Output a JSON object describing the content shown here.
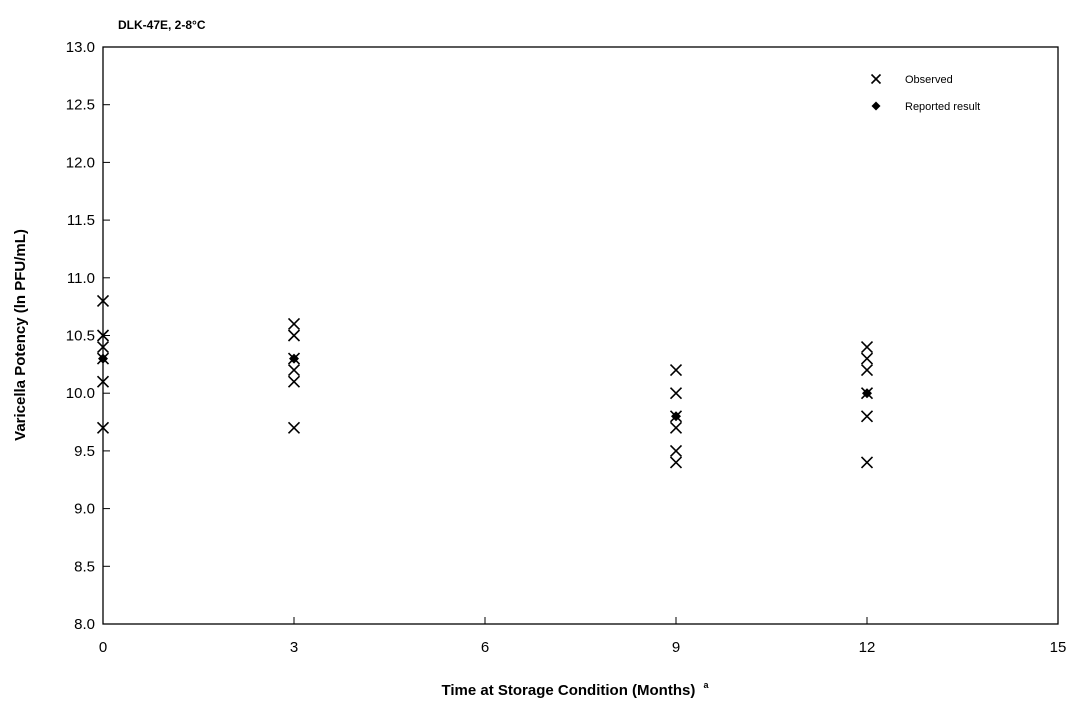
{
  "chart_data": {
    "type": "scatter",
    "title": "DLK-47E, 2-8°C",
    "xlabel": "Time at Storage Condition (Months)",
    "xlabel_footnote": "a",
    "ylabel": "Varicella Potency (ln PFU/mL)",
    "xlim": [
      0,
      15
    ],
    "ylim": [
      8.0,
      13.0
    ],
    "x_ticks": [
      "0",
      "3",
      "6",
      "9",
      "12",
      "15"
    ],
    "y_ticks": [
      "8.0",
      "8.5",
      "9.0",
      "9.5",
      "10.0",
      "10.5",
      "11.0",
      "11.5",
      "12.0",
      "12.5",
      "13.0"
    ],
    "grid": false,
    "legend_position": "top-right",
    "series": [
      {
        "name": "Observed",
        "marker": "x",
        "color": "#000000",
        "points": [
          [
            0,
            10.8
          ],
          [
            0,
            10.5
          ],
          [
            0,
            10.4
          ],
          [
            0,
            10.3
          ],
          [
            0,
            10.1
          ],
          [
            0,
            9.7
          ],
          [
            3,
            10.6
          ],
          [
            3,
            10.5
          ],
          [
            3,
            10.3
          ],
          [
            3,
            10.2
          ],
          [
            3,
            10.1
          ],
          [
            3,
            9.7
          ],
          [
            9,
            10.2
          ],
          [
            9,
            10.0
          ],
          [
            9,
            9.8
          ],
          [
            9,
            9.7
          ],
          [
            9,
            9.5
          ],
          [
            9,
            9.4
          ],
          [
            12,
            10.4
          ],
          [
            12,
            10.3
          ],
          [
            12,
            10.2
          ],
          [
            12,
            10.0
          ],
          [
            12,
            9.8
          ],
          [
            12,
            9.4
          ]
        ]
      },
      {
        "name": "Reported result",
        "marker": "diamond-filled",
        "color": "#000000",
        "points": [
          [
            0,
            10.3
          ],
          [
            3,
            10.3
          ],
          [
            9,
            9.8
          ],
          [
            12,
            10.0
          ]
        ]
      }
    ]
  }
}
